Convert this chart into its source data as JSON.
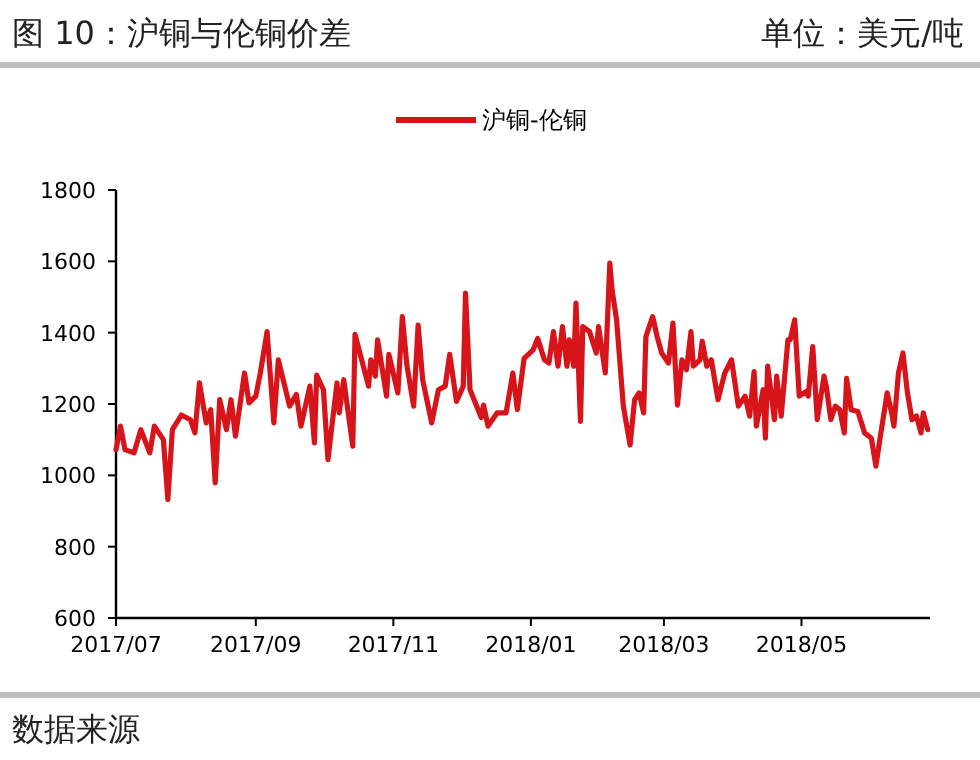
{
  "chart_data": {
    "type": "line",
    "title": "图 10：沪铜与伦铜价差",
    "ylabel": "单位：美元/吨",
    "annotations": [
      "数据来源"
    ],
    "legend": "top",
    "grid": false,
    "xlim": [
      "2017-07-01",
      "2018-06-27"
    ],
    "xticks": [
      {
        "value": "2017-07-01",
        "label": "2017/07"
      },
      {
        "value": "2017-09-01",
        "label": "2017/09"
      },
      {
        "value": "2017-11-01",
        "label": "2017/11"
      },
      {
        "value": "2018-01-01",
        "label": "2018/01"
      },
      {
        "value": "2018-03-01",
        "label": "2018/03"
      },
      {
        "value": "2018-05-01",
        "label": "2018/05"
      }
    ],
    "ylim": [
      600,
      1800
    ],
    "yticks": [
      600,
      800,
      1000,
      1200,
      1400,
      1600,
      1800
    ],
    "x": [
      "2017-07-01",
      "2017-07-03",
      "2017-07-05",
      "2017-07-09",
      "2017-07-12",
      "2017-07-16",
      "2017-07-18",
      "2017-07-22",
      "2017-07-24",
      "2017-07-26",
      "2017-07-30",
      "2017-08-03",
      "2017-08-05",
      "2017-08-07",
      "2017-08-10",
      "2017-08-12",
      "2017-08-14",
      "2017-08-16",
      "2017-08-19",
      "2017-08-21",
      "2017-08-23",
      "2017-08-27",
      "2017-08-29",
      "2017-09-01",
      "2017-09-03",
      "2017-09-06",
      "2017-09-09",
      "2017-09-11",
      "2017-09-16",
      "2017-09-19",
      "2017-09-21",
      "2017-09-25",
      "2017-09-27",
      "2017-09-28",
      "2017-10-01",
      "2017-10-03",
      "2017-10-07",
      "2017-10-08",
      "2017-10-10",
      "2017-10-12",
      "2017-10-14",
      "2017-10-15",
      "2017-10-21",
      "2017-10-22",
      "2017-10-24",
      "2017-10-25",
      "2017-10-29",
      "2017-10-30",
      "2017-11-03",
      "2017-11-05",
      "2017-11-07",
      "2017-11-10",
      "2017-11-12",
      "2017-11-14",
      "2017-11-18",
      "2017-11-21",
      "2017-11-24",
      "2017-11-26",
      "2017-11-29",
      "2017-12-02",
      "2017-12-03",
      "2017-12-05",
      "2017-12-10",
      "2017-12-11",
      "2017-12-13",
      "2017-12-17",
      "2017-12-21",
      "2017-12-24",
      "2017-12-26",
      "2017-12-29",
      "2018-01-02",
      "2018-01-04",
      "2018-01-07",
      "2018-01-09",
      "2018-01-11",
      "2018-01-13",
      "2018-01-15",
      "2018-01-17",
      "2018-01-18",
      "2018-01-20",
      "2018-01-21",
      "2018-01-23",
      "2018-01-24",
      "2018-01-27",
      "2018-01-30",
      "2018-01-31",
      "2018-02-03",
      "2018-02-05",
      "2018-02-06",
      "2018-02-08",
      "2018-02-11",
      "2018-02-14",
      "2018-02-16",
      "2018-02-18",
      "2018-02-20",
      "2018-02-21",
      "2018-02-24",
      "2018-02-26",
      "2018-02-28",
      "2018-03-03",
      "2018-03-05",
      "2018-03-07",
      "2018-03-09",
      "2018-03-11",
      "2018-03-13",
      "2018-03-14",
      "2018-03-17",
      "2018-03-18",
      "2018-03-20",
      "2018-03-22",
      "2018-03-25",
      "2018-03-28",
      "2018-03-31",
      "2018-04-03",
      "2018-04-06",
      "2018-04-08",
      "2018-04-10",
      "2018-04-11",
      "2018-04-14",
      "2018-04-15",
      "2018-04-16",
      "2018-04-19",
      "2018-04-20",
      "2018-04-22",
      "2018-04-25",
      "2018-04-26",
      "2018-04-28",
      "2018-04-30",
      "2018-05-03",
      "2018-05-04",
      "2018-05-06",
      "2018-05-08",
      "2018-05-11",
      "2018-05-12",
      "2018-05-14",
      "2018-05-16",
      "2018-05-18",
      "2018-05-20",
      "2018-05-21",
      "2018-05-23",
      "2018-05-26",
      "2018-05-29",
      "2018-06-01",
      "2018-06-03",
      "2018-06-05",
      "2018-06-08",
      "2018-06-10",
      "2018-06-11",
      "2018-06-13",
      "2018-06-15",
      "2018-06-17",
      "2018-06-19",
      "2018-06-21",
      "2018-06-23",
      "2018-06-24",
      "2018-06-26"
    ],
    "series": [
      {
        "name": "沪铜-伦铜",
        "color": "#d7141a",
        "values": [
          1072,
          1138,
          1072,
          1063,
          1128,
          1063,
          1138,
          1100,
          932,
          1128,
          1169,
          1156,
          1119,
          1259,
          1147,
          1184,
          979,
          1212,
          1128,
          1212,
          1110,
          1287,
          1203,
          1222,
          1287,
          1403,
          1147,
          1324,
          1194,
          1227,
          1138,
          1250,
          1091,
          1281,
          1240,
          1044,
          1259,
          1175,
          1268,
          1175,
          1082,
          1395,
          1250,
          1324,
          1278,
          1380,
          1222,
          1339,
          1231,
          1445,
          1309,
          1194,
          1421,
          1268,
          1147,
          1240,
          1250,
          1339,
          1207,
          1250,
          1511,
          1240,
          1162,
          1197,
          1138,
          1175,
          1175,
          1287,
          1184,
          1328,
          1352,
          1384,
          1324,
          1315,
          1403,
          1306,
          1417,
          1306,
          1380,
          1306,
          1483,
          1151,
          1417,
          1403,
          1343,
          1417,
          1287,
          1595,
          1520,
          1436,
          1194,
          1085,
          1212,
          1231,
          1175,
          1389,
          1445,
          1389,
          1343,
          1315,
          1427,
          1197,
          1324,
          1296,
          1403,
          1306,
          1324,
          1376,
          1306,
          1324,
          1212,
          1287,
          1324,
          1194,
          1222,
          1166,
          1291,
          1138,
          1240,
          1104,
          1306,
          1156,
          1278,
          1166,
          1380,
          1380,
          1436,
          1222,
          1235,
          1222,
          1361,
          1156,
          1278,
          1250,
          1156,
          1194,
          1184,
          1119,
          1272,
          1184,
          1179,
          1119,
          1104,
          1026,
          1110,
          1231,
          1175,
          1138,
          1287,
          1343,
          1231,
          1156,
          1166,
          1119,
          1175,
          1128
        ]
      }
    ]
  }
}
